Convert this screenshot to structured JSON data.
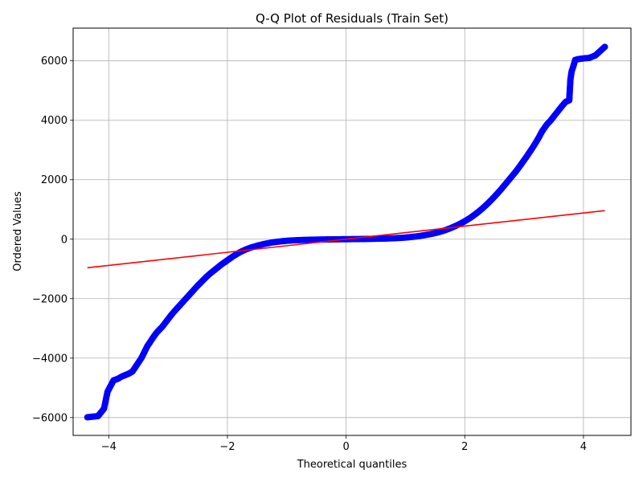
{
  "chart_data": {
    "type": "scatter",
    "title": "Q-Q Plot of Residuals (Train Set)",
    "xlabel": "Theoretical quantiles",
    "ylabel": "Ordered Values",
    "xlim": [
      -4.6,
      4.8
    ],
    "ylim": [
      -6600,
      7100
    ],
    "xticks": [
      -4,
      -2,
      0,
      2,
      4
    ],
    "yticks": [
      -6000,
      -4000,
      -2000,
      0,
      2000,
      4000,
      6000
    ],
    "xtick_labels": [
      "−4",
      "−2",
      "0",
      "2",
      "4"
    ],
    "ytick_labels": [
      "−6000",
      "−4000",
      "−2000",
      "0",
      "2000",
      "4000",
      "6000"
    ],
    "grid": true,
    "colors": {
      "points": "#0000ff",
      "fit_line": "#ff0000",
      "grid": "#b0b0b0",
      "axes": "#000000"
    },
    "series": [
      {
        "kind": "scatter",
        "points": [
          [
            -4.36,
            -5990
          ],
          [
            -4.18,
            -5950
          ],
          [
            -4.08,
            -5700
          ],
          [
            -4.02,
            -5130
          ],
          [
            -3.92,
            -4750
          ],
          [
            -3.85,
            -4700
          ],
          [
            -3.78,
            -4620
          ],
          [
            -3.72,
            -4570
          ],
          [
            -3.66,
            -4520
          ],
          [
            -3.6,
            -4450
          ],
          [
            -3.55,
            -4300
          ],
          [
            -3.5,
            -4150
          ],
          [
            -3.45,
            -4000
          ],
          [
            -3.4,
            -3800
          ],
          [
            -3.35,
            -3600
          ],
          [
            -3.3,
            -3450
          ],
          [
            -3.25,
            -3300
          ],
          [
            -3.2,
            -3160
          ],
          [
            -3.15,
            -3050
          ],
          [
            -3.1,
            -2950
          ],
          [
            -3.05,
            -2820
          ],
          [
            -3.0,
            -2690
          ],
          [
            -2.95,
            -2560
          ],
          [
            -2.9,
            -2440
          ],
          [
            -2.85,
            -2330
          ],
          [
            -2.8,
            -2220
          ],
          [
            -2.75,
            -2110
          ],
          [
            -2.7,
            -2000
          ],
          [
            -2.65,
            -1890
          ],
          [
            -2.6,
            -1780
          ],
          [
            -2.55,
            -1670
          ],
          [
            -2.5,
            -1560
          ],
          [
            -2.45,
            -1460
          ],
          [
            -2.4,
            -1360
          ],
          [
            -2.35,
            -1260
          ],
          [
            -2.3,
            -1170
          ],
          [
            -2.25,
            -1090
          ],
          [
            -2.2,
            -1010
          ],
          [
            -2.15,
            -930
          ],
          [
            -2.1,
            -850
          ],
          [
            -2.05,
            -780
          ],
          [
            -2.0,
            -710
          ],
          [
            -1.95,
            -640
          ],
          [
            -1.9,
            -570
          ],
          [
            -1.85,
            -510
          ],
          [
            -1.8,
            -450
          ],
          [
            -1.75,
            -400
          ],
          [
            -1.7,
            -355
          ],
          [
            -1.65,
            -315
          ],
          [
            -1.6,
            -280
          ],
          [
            -1.55,
            -250
          ],
          [
            -1.5,
            -220
          ],
          [
            -1.45,
            -195
          ],
          [
            -1.4,
            -170
          ],
          [
            -1.35,
            -150
          ],
          [
            -1.3,
            -130
          ],
          [
            -1.25,
            -112
          ],
          [
            -1.2,
            -98
          ],
          [
            -1.15,
            -85
          ],
          [
            -1.1,
            -74
          ],
          [
            -1.05,
            -64
          ],
          [
            -1.0,
            -55
          ],
          [
            -0.9,
            -42
          ],
          [
            -0.8,
            -32
          ],
          [
            -0.7,
            -25
          ],
          [
            -0.6,
            -19
          ],
          [
            -0.5,
            -14
          ],
          [
            -0.4,
            -10
          ],
          [
            -0.3,
            -7
          ],
          [
            -0.2,
            -4
          ],
          [
            -0.1,
            -2
          ],
          [
            0.0,
            0
          ],
          [
            0.1,
            2
          ],
          [
            0.2,
            4
          ],
          [
            0.3,
            7
          ],
          [
            0.4,
            10
          ],
          [
            0.5,
            14
          ],
          [
            0.6,
            19
          ],
          [
            0.7,
            25
          ],
          [
            0.8,
            32
          ],
          [
            0.9,
            42
          ],
          [
            1.0,
            55
          ],
          [
            1.05,
            64
          ],
          [
            1.1,
            74
          ],
          [
            1.15,
            85
          ],
          [
            1.2,
            98
          ],
          [
            1.25,
            112
          ],
          [
            1.3,
            128
          ],
          [
            1.35,
            145
          ],
          [
            1.4,
            163
          ],
          [
            1.45,
            183
          ],
          [
            1.5,
            205
          ],
          [
            1.55,
            230
          ],
          [
            1.6,
            258
          ],
          [
            1.65,
            290
          ],
          [
            1.7,
            325
          ],
          [
            1.75,
            363
          ],
          [
            1.8,
            405
          ],
          [
            1.85,
            450
          ],
          [
            1.9,
            498
          ],
          [
            1.95,
            550
          ],
          [
            2.0,
            605
          ],
          [
            2.05,
            665
          ],
          [
            2.1,
            730
          ],
          [
            2.15,
            800
          ],
          [
            2.2,
            875
          ],
          [
            2.25,
            955
          ],
          [
            2.3,
            1040
          ],
          [
            2.35,
            1130
          ],
          [
            2.4,
            1225
          ],
          [
            2.45,
            1325
          ],
          [
            2.5,
            1430
          ],
          [
            2.55,
            1540
          ],
          [
            2.6,
            1650
          ],
          [
            2.65,
            1770
          ],
          [
            2.7,
            1890
          ],
          [
            2.75,
            2010
          ],
          [
            2.8,
            2130
          ],
          [
            2.85,
            2250
          ],
          [
            2.9,
            2380
          ],
          [
            2.95,
            2520
          ],
          [
            3.0,
            2660
          ],
          [
            3.05,
            2800
          ],
          [
            3.1,
            2950
          ],
          [
            3.15,
            3100
          ],
          [
            3.2,
            3260
          ],
          [
            3.25,
            3430
          ],
          [
            3.3,
            3620
          ],
          [
            3.38,
            3850
          ],
          [
            3.45,
            4000
          ],
          [
            3.52,
            4180
          ],
          [
            3.58,
            4330
          ],
          [
            3.64,
            4480
          ],
          [
            3.7,
            4620
          ],
          [
            3.76,
            4670
          ],
          [
            3.78,
            5370
          ],
          [
            3.8,
            5640
          ],
          [
            3.83,
            5820
          ],
          [
            3.86,
            6030
          ],
          [
            3.92,
            6060
          ],
          [
            4.0,
            6080
          ],
          [
            4.1,
            6100
          ],
          [
            4.2,
            6180
          ],
          [
            4.36,
            6470
          ]
        ]
      },
      {
        "kind": "line",
        "points": [
          [
            -4.36,
            -960
          ],
          [
            4.36,
            960
          ]
        ]
      }
    ]
  }
}
